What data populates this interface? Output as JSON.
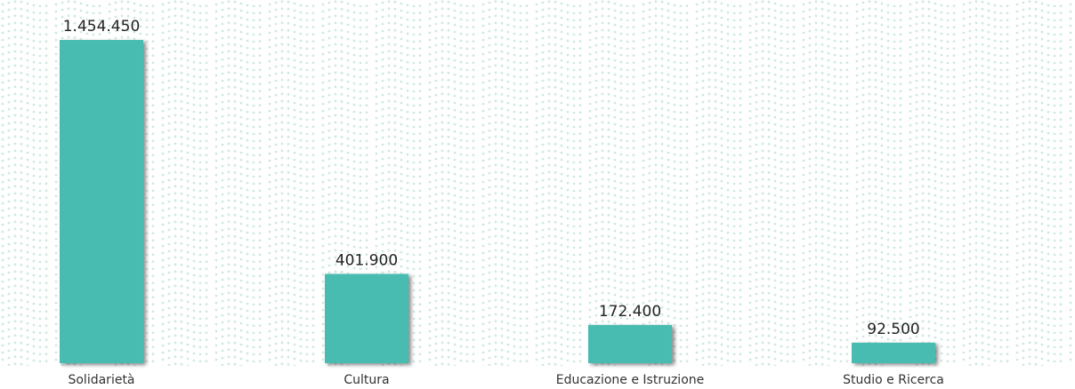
{
  "colors": {
    "bar": "#48bcb2",
    "pattern_dot": "#cfe9e2",
    "background": "#ffffff",
    "text": "#222222"
  },
  "chart_data": {
    "type": "bar",
    "categories": [
      "Solidarietà",
      "Cultura",
      "Educazione e Istruzione",
      "Studio e Ricerca"
    ],
    "values": [
      1454450,
      401900,
      172400,
      92500
    ],
    "value_labels": [
      "1.454.450",
      "401.900",
      "172.400",
      "92.500"
    ],
    "title": "",
    "xlabel": "",
    "ylabel": "",
    "ylim": [
      0,
      1454450
    ],
    "grid": false,
    "legend": "none"
  }
}
